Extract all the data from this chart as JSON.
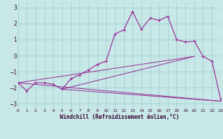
{
  "xlabel": "Windchill (Refroidissement éolien,°C)",
  "bg_color": "#c8e8e8",
  "grid_color": "#99cccc",
  "line_color": "#993399",
  "axis_label_color": "#330033",
  "xlim": [
    0,
    23
  ],
  "ylim": [
    -3.3,
    3.3
  ],
  "xticks": [
    0,
    1,
    2,
    3,
    4,
    5,
    6,
    7,
    8,
    9,
    10,
    11,
    12,
    13,
    14,
    15,
    16,
    17,
    18,
    19,
    20,
    21,
    22,
    23
  ],
  "yticks": [
    -3,
    -2,
    -1,
    0,
    1,
    2,
    3
  ],
  "main_x": [
    0,
    1,
    2,
    3,
    4,
    5,
    6,
    7,
    8,
    9,
    10,
    11,
    12,
    13,
    14,
    15,
    16,
    17,
    18,
    19,
    20,
    21,
    22,
    23
  ],
  "main_y": [
    -1.7,
    -2.2,
    -1.7,
    -1.7,
    -1.8,
    -2.1,
    -1.45,
    -1.2,
    -0.9,
    -0.55,
    -0.35,
    1.35,
    1.6,
    2.75,
    1.65,
    2.35,
    2.2,
    2.45,
    1.0,
    0.85,
    0.9,
    -0.05,
    -0.35,
    -2.75
  ],
  "straight_lines": [
    {
      "x": [
        0,
        20
      ],
      "y": [
        -1.7,
        -0.05
      ]
    },
    {
      "x": [
        5,
        20
      ],
      "y": [
        -2.1,
        -0.05
      ]
    },
    {
      "x": [
        0,
        23
      ],
      "y": [
        -1.7,
        -2.85
      ]
    },
    {
      "x": [
        5,
        23
      ],
      "y": [
        -2.1,
        -2.85
      ]
    }
  ]
}
